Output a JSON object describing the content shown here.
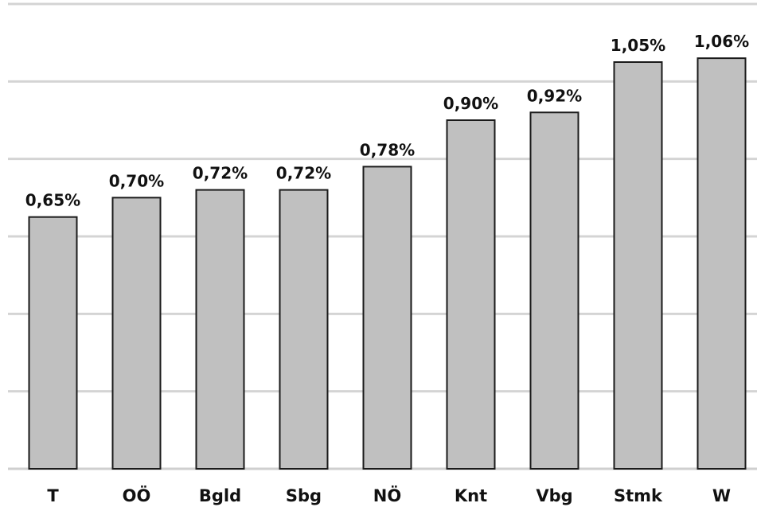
{
  "chart_data": {
    "type": "bar",
    "title": "",
    "xlabel": "",
    "ylabel": "",
    "categories": [
      "T",
      "OÖ",
      "Bgld",
      "Sbg",
      "NÖ",
      "Knt",
      "Vbg",
      "Stmk",
      "W"
    ],
    "values": [
      0.65,
      0.7,
      0.72,
      0.72,
      0.78,
      0.9,
      0.92,
      1.05,
      1.06
    ],
    "value_labels": [
      "0,65%",
      "0,70%",
      "0,72%",
      "0,72%",
      "0,78%",
      "0,90%",
      "0,92%",
      "1,05%",
      "1,06%"
    ],
    "ylim": [
      0,
      1.2
    ],
    "gridlines": [
      0.2,
      0.4,
      0.6,
      0.8,
      1.0,
      1.2
    ],
    "grid": true,
    "legend": "none",
    "colors": {
      "bar_fill": "#c0c0c0",
      "bar_stroke": "#1a1a1a",
      "grid": "#d4d4d4"
    }
  }
}
